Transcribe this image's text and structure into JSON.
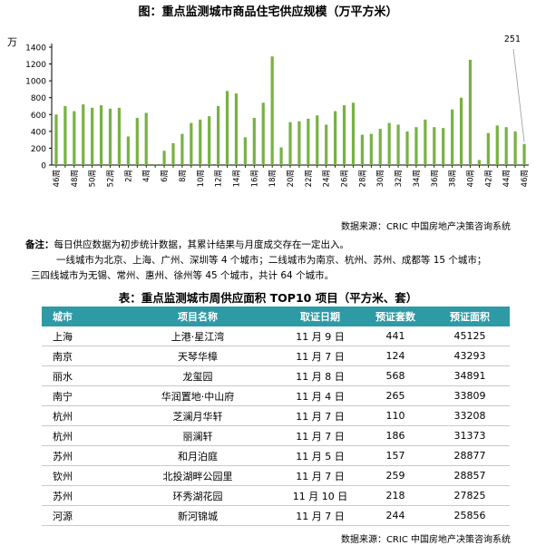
{
  "chart_title": "图：重点监测城市商品住宅供应规模（万平方米）",
  "chart_data": {
    "type": "bar",
    "title": "图：重点监测城市商品住宅供应规模（万平方米）",
    "ylabel": "万",
    "ylim": [
      0,
      1400
    ],
    "yticks": [
      0,
      200,
      400,
      600,
      800,
      1000,
      1200,
      1400
    ],
    "grid": false,
    "categories": [
      "46周",
      "47周",
      "48周",
      "49周",
      "50周",
      "51周",
      "52周",
      "1周",
      "2周",
      "3周",
      "4周",
      "5周",
      "6周",
      "7周",
      "8周",
      "9周",
      "10周",
      "11周",
      "12周",
      "13周",
      "14周",
      "15周",
      "16周",
      "17周",
      "18周",
      "19周",
      "20周",
      "21周",
      "22周",
      "23周",
      "24周",
      "25周",
      "26周",
      "27周",
      "28周",
      "29周",
      "30周",
      "31周",
      "32周",
      "33周",
      "34周",
      "35周",
      "36周",
      "37周",
      "38周",
      "39周",
      "40周",
      "41周",
      "42周",
      "43周",
      "44周",
      "45周",
      "46周"
    ],
    "xtick_labels": [
      "46周",
      "",
      "48周",
      "",
      "50周",
      "",
      "52周",
      "",
      "2周",
      "",
      "4周",
      "",
      "6周",
      "",
      "8周",
      "",
      "10周",
      "",
      "12周",
      "",
      "14周",
      "",
      "16周",
      "",
      "18周",
      "",
      "20周",
      "",
      "22周",
      "",
      "24周",
      "",
      "26周",
      "",
      "28周",
      "",
      "30周",
      "",
      "32周",
      "",
      "34周",
      "",
      "36周",
      "",
      "38周",
      "",
      "40周",
      "",
      "42周",
      "",
      "44周",
      "",
      "46周"
    ],
    "values": [
      600,
      700,
      640,
      720,
      680,
      710,
      670,
      680,
      340,
      560,
      620,
      10,
      170,
      260,
      370,
      500,
      540,
      580,
      700,
      880,
      850,
      330,
      560,
      740,
      1290,
      210,
      510,
      520,
      550,
      590,
      480,
      640,
      710,
      740,
      360,
      370,
      430,
      500,
      480,
      400,
      450,
      540,
      450,
      440,
      660,
      800,
      1250,
      60,
      380,
      470,
      450,
      400,
      251
    ],
    "annotation": "251",
    "bar_color": "#77b243"
  },
  "chart_source": "数据来源：CRIC 中国房地产决策咨询系统",
  "note": {
    "label": "备注：",
    "line1": "每日供应数据为初步统计数据，其累计结果与月度成交存在一定出入。",
    "line2": "一线城市为北京、上海、广州、深圳等 4 个城市；二线城市为南京、杭州、苏州、成都等 15 个城市；",
    "line3": "三四线城市为无锡、常州、惠州、徐州等 45 个城市，共计 64 个城市。"
  },
  "table_title": "表：重点监测城市周供应面积 TOP10 项目（平方米、套）",
  "table": {
    "headers": [
      "城市",
      "项目名称",
      "取证日期",
      "预证套数",
      "预证面积"
    ],
    "rows": [
      [
        "上海",
        "上港·星江湾",
        "11 月 9 日",
        "441",
        "45125"
      ],
      [
        "南京",
        "天琴华樟",
        "11 月 7 日",
        "124",
        "43293"
      ],
      [
        "丽水",
        "龙玺园",
        "11 月 8 日",
        "568",
        "34891"
      ],
      [
        "南宁",
        "华润置地·中山府",
        "11 月 4 日",
        "265",
        "33809"
      ],
      [
        "杭州",
        "芝澜月华轩",
        "11 月 7 日",
        "110",
        "33208"
      ],
      [
        "杭州",
        "丽澜轩",
        "11 月 7 日",
        "186",
        "31373"
      ],
      [
        "苏州",
        "和月泊庭",
        "11 月 5 日",
        "157",
        "28877"
      ],
      [
        "钦州",
        "北投湖畔公园里",
        "11 月 7 日",
        "259",
        "28857"
      ],
      [
        "苏州",
        "环秀湖花园",
        "11 月 10 日",
        "218",
        "27825"
      ],
      [
        "河源",
        "新河锦城",
        "11 月 7 日",
        "244",
        "25856"
      ]
    ]
  },
  "table_source": "数据来源：CRIC 中国房地产决策咨询系统"
}
